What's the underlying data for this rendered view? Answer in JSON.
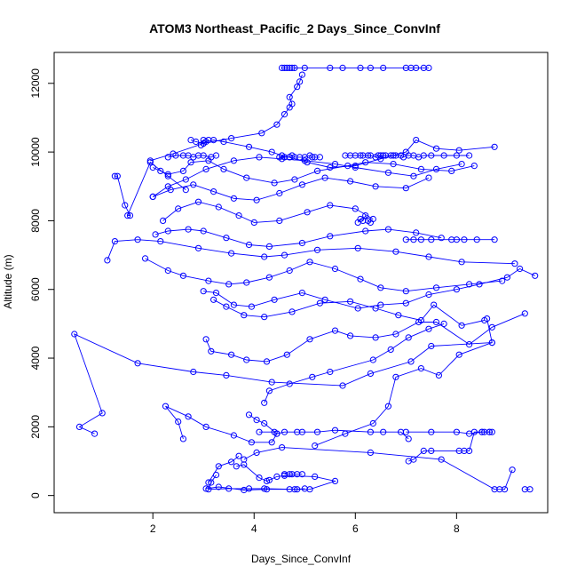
{
  "chart_data": {
    "type": "line",
    "title": "ATOM3 Northeast_Pacific_2 Days_Since_ConvInf",
    "xlabel": "Days_Since_ConvInf",
    "ylabel": "Altitude (m)",
    "xlim": [
      0.05,
      9.8
    ],
    "ylim": [
      -500,
      12900
    ],
    "xticks": [
      2,
      4,
      6,
      8
    ],
    "yticks": [
      0,
      2000,
      4000,
      6000,
      8000,
      10000,
      12000
    ],
    "grid": false,
    "legend": "none",
    "colors": {
      "series": "#0000ff",
      "axis": "#000000",
      "background": "#ffffff"
    },
    "marker": "open-circle",
    "series": [
      {
        "x": [
          9.45,
          9.35
        ],
        "y": [
          180,
          180
        ]
      },
      {
        "x": [
          9.1,
          8.95,
          8.85,
          8.75,
          7.7,
          6.3,
          4.55,
          4.05,
          3.8
        ],
        "y": [
          750,
          180,
          180,
          180,
          1050,
          1250,
          1400,
          1250,
          1050
        ]
      },
      {
        "x": [
          3.25,
          3.15,
          3.1,
          3.5,
          3.9,
          4.2,
          4.8,
          5.1,
          5.6,
          5.2,
          4.6,
          4.45,
          4.3,
          4.25,
          4.1,
          3.8,
          3.65
        ],
        "y": [
          600,
          380,
          180,
          200,
          200,
          200,
          180,
          180,
          420,
          550,
          580,
          550,
          450,
          420,
          520,
          900,
          850
        ]
      },
      {
        "x": [
          3.05,
          3.3,
          3.8,
          4.25,
          4.7,
          4.85,
          5.0
        ],
        "y": [
          200,
          250,
          160,
          180,
          180,
          180,
          200
        ]
      },
      {
        "x": [
          3.1,
          3.3,
          3.55,
          3.7
        ],
        "y": [
          380,
          850,
          980,
          1150
        ]
      },
      {
        "x": [
          4.7,
          4.85,
          4.95,
          4.75,
          4.6
        ],
        "y": [
          620,
          620,
          620,
          620,
          620
        ]
      },
      {
        "x": [
          7.05,
          7.15,
          7.35,
          7.5,
          8.05,
          8.15,
          8.25,
          8.35,
          8.5,
          8.55,
          8.65,
          8.7
        ],
        "y": [
          1000,
          1050,
          1300,
          1300,
          1300,
          1300,
          1300,
          1850,
          1850,
          1850,
          1850,
          1850
        ]
      },
      {
        "x": [
          7.0,
          7.5,
          8.0,
          8.25,
          8.5,
          8.65
        ],
        "y": [
          1850,
          1850,
          1850,
          1800,
          1850,
          1850
        ]
      },
      {
        "x": [
          4.1,
          4.4,
          4.45,
          4.6,
          4.85,
          4.95,
          5.25,
          5.6,
          6.3,
          6.55,
          6.9,
          7.05
        ],
        "y": [
          1850,
          1850,
          1800,
          1850,
          1850,
          1850,
          1850,
          1900,
          1850,
          1850,
          1850,
          1650
        ]
      },
      {
        "x": [
          0.85,
          0.55,
          1.0,
          0.45,
          1.7,
          2.8,
          3.45,
          4.35,
          5.75,
          6.3,
          7.1,
          7.5,
          8.7
        ],
        "y": [
          1800,
          2000,
          2400,
          4700,
          3850,
          3600,
          3500,
          3300,
          3200,
          3550,
          3900,
          4350,
          4450
        ]
      },
      {
        "x": [
          2.6,
          2.5,
          2.25,
          2.7,
          3.05,
          3.6,
          3.95,
          4.35,
          4.45,
          4.2,
          4.05,
          3.9
        ],
        "y": [
          1650,
          2150,
          2600,
          2300,
          2000,
          1750,
          1550,
          1550,
          1800,
          2100,
          2200,
          2350
        ]
      },
      {
        "x": [
          5.2,
          5.8,
          6.35,
          6.65,
          6.8,
          7.3,
          7.65,
          8.05,
          8.7,
          8.6
        ],
        "y": [
          1450,
          1800,
          2100,
          2600,
          3450,
          3700,
          3500,
          4100,
          4450,
          5150
        ]
      },
      {
        "x": [
          4.2,
          4.3,
          4.7,
          5.15,
          5.5,
          6.35,
          6.7,
          7.05,
          7.45,
          7.75
        ],
        "y": [
          2700,
          3050,
          3250,
          3450,
          3600,
          3950,
          4250,
          4600,
          4850,
          5000
        ]
      },
      {
        "x": [
          3.05,
          3.15,
          3.55,
          3.85,
          4.25,
          4.65,
          5.1,
          5.6,
          5.9,
          6.4,
          6.8,
          7.25,
          7.6,
          8.25,
          8.7,
          9.35
        ],
        "y": [
          4550,
          4200,
          4100,
          3950,
          3900,
          4100,
          4550,
          4800,
          4650,
          4600,
          4700,
          5050,
          5050,
          4400,
          4900,
          5300
        ]
      },
      {
        "x": [
          3.2,
          3.45,
          3.8,
          4.2,
          4.75,
          5.3,
          5.9,
          6.4,
          6.85,
          7.3,
          7.55,
          8.1,
          8.55
        ],
        "y": [
          5700,
          5500,
          5250,
          5200,
          5350,
          5600,
          5650,
          5450,
          5250,
          5100,
          5550,
          4950,
          5100
        ]
      },
      {
        "x": [
          3.0,
          3.25,
          3.6,
          3.95,
          4.4,
          4.95,
          5.4,
          6.05,
          6.5,
          7.0,
          7.45,
          8.0,
          8.45,
          9.0,
          9.25,
          9.55
        ],
        "y": [
          5950,
          5900,
          5550,
          5500,
          5700,
          5900,
          5700,
          5450,
          5550,
          5600,
          5850,
          6000,
          6150,
          6350,
          6600,
          6400
        ]
      },
      {
        "x": [
          1.1,
          1.25,
          1.7,
          2.15,
          2.9,
          3.55,
          4.2,
          4.6,
          5.25,
          6.05,
          6.8,
          7.45,
          8.1,
          9.15
        ],
        "y": [
          6850,
          7400,
          7450,
          7400,
          7200,
          7050,
          6950,
          7000,
          7150,
          7200,
          7100,
          6950,
          6800,
          6750
        ]
      },
      {
        "x": [
          1.85,
          2.3,
          2.6,
          3.1,
          3.5,
          3.85,
          4.3,
          4.7,
          5.1,
          5.6,
          6.1,
          6.5,
          7.0,
          7.6,
          8.25,
          8.9
        ],
        "y": [
          6900,
          6550,
          6400,
          6250,
          6150,
          6200,
          6350,
          6550,
          6800,
          6600,
          6300,
          6050,
          5950,
          6050,
          6150,
          6250
        ]
      },
      {
        "x": [
          2.05,
          2.3,
          2.7,
          3.0,
          3.45,
          3.9,
          4.3,
          4.95,
          5.5,
          6.2,
          6.65,
          7.2,
          7.7
        ],
        "y": [
          7600,
          7700,
          7750,
          7700,
          7500,
          7300,
          7250,
          7350,
          7550,
          7700,
          7750,
          7650,
          7500
        ]
      },
      {
        "x": [
          7.0,
          7.15,
          7.3,
          7.5,
          7.9,
          8.0,
          8.15,
          8.4,
          8.75
        ],
        "y": [
          7450,
          7450,
          7450,
          7450,
          7450,
          7450,
          7450,
          7450,
          7450
        ]
      },
      {
        "x": [
          2.2,
          2.5,
          2.9,
          3.3,
          3.7,
          4.0,
          4.5,
          5.05,
          5.5,
          6.0,
          6.35
        ],
        "y": [
          8000,
          8350,
          8550,
          8400,
          8150,
          7950,
          8000,
          8250,
          8450,
          8350,
          8050
        ]
      },
      {
        "x": [
          6.05,
          6.1,
          6.15,
          6.2,
          6.25,
          6.3
        ],
        "y": [
          7950,
          8050,
          8000,
          8150,
          8000,
          7950
        ]
      },
      {
        "x": [
          2.0,
          2.35,
          2.8,
          3.2,
          3.6,
          4.05,
          4.5,
          4.95,
          5.4,
          5.9,
          6.4,
          7.0,
          7.45
        ],
        "y": [
          8700,
          8900,
          9050,
          8850,
          8650,
          8600,
          8800,
          9050,
          9250,
          9150,
          9000,
          8950,
          9250
        ]
      },
      {
        "x": [
          1.25,
          1.3,
          1.45,
          1.55,
          1.5,
          1.95,
          2.3,
          2.65
        ],
        "y": [
          9300,
          9300,
          8450,
          8150,
          8150,
          9700,
          9300,
          8900
        ]
      },
      {
        "x": [
          2.0,
          2.15,
          2.3,
          2.6,
          2.75,
          3.1,
          3.4,
          3.85,
          4.4,
          4.8,
          5.25,
          5.85,
          6.2,
          6.75,
          7.3,
          7.9,
          8.35
        ],
        "y": [
          9550,
          9450,
          9350,
          9450,
          9700,
          9750,
          9500,
          9250,
          9100,
          9200,
          9450,
          9600,
          9700,
          9650,
          9500,
          9450,
          9600
        ]
      },
      {
        "x": [
          2.0,
          2.3,
          2.65,
          3.05,
          3.6,
          4.1,
          4.55,
          5.0,
          5.6,
          6.0,
          6.65,
          7.15,
          7.6,
          8.1
        ],
        "y": [
          8700,
          9000,
          9200,
          9500,
          9750,
          9850,
          9800,
          9750,
          9650,
          9550,
          9400,
          9300,
          9500,
          9650
        ]
      },
      {
        "x": [
          2.3,
          2.45,
          2.6,
          2.7,
          2.8,
          2.9,
          3.0,
          3.15,
          3.25
        ],
        "y": [
          9850,
          9900,
          9900,
          9900,
          9850,
          9900,
          9900,
          9850,
          9900
        ]
      },
      {
        "x": [
          4.5,
          4.6,
          4.7,
          4.75,
          4.8,
          4.9,
          5.0,
          5.1,
          5.15,
          5.2,
          5.3
        ],
        "y": [
          9850,
          9850,
          9850,
          9900,
          9850,
          9850,
          9850,
          9900,
          9850,
          9850,
          9850
        ]
      },
      {
        "x": [
          5.8,
          5.9,
          6.0,
          6.1,
          6.15,
          6.25,
          6.3,
          6.4,
          6.45,
          6.5,
          6.55,
          6.6,
          6.7,
          6.75,
          6.8,
          6.9,
          6.95,
          7.05,
          7.15,
          7.25,
          7.35,
          7.5,
          7.75,
          8.0,
          8.25
        ],
        "y": [
          9900,
          9900,
          9900,
          9900,
          9900,
          9900,
          9900,
          9850,
          9900,
          9900,
          9900,
          9900,
          9900,
          9900,
          9900,
          9900,
          9850,
          9900,
          9900,
          9850,
          9900,
          9900,
          9900,
          9900,
          9900
        ]
      },
      {
        "x": [
          2.95,
          3.0,
          3.05,
          3.2,
          3.4,
          3.9,
          4.35,
          4.55,
          4.7,
          5.05,
          5.5,
          6.0,
          6.5,
          7.0,
          7.2,
          7.6,
          8.05,
          8.75
        ],
        "y": [
          10200,
          10350,
          10300,
          10350,
          10300,
          10150,
          10000,
          9900,
          9850,
          9700,
          9550,
          9600,
          9800,
          10000,
          10350,
          10100,
          10050,
          10150
        ]
      },
      {
        "x": [
          2.75,
          2.85,
          3.0,
          3.1
        ],
        "y": [
          10350,
          10300,
          10250,
          10350
        ]
      },
      {
        "x": [
          1.95,
          2.4,
          3.0,
          3.55,
          4.15,
          4.45,
          4.6,
          4.7,
          4.75,
          4.7,
          4.85,
          4.9,
          4.95
        ],
        "y": [
          9750,
          9950,
          10250,
          10400,
          10550,
          10800,
          11100,
          11300,
          11400,
          11600,
          11900,
          12050,
          12250
        ]
      },
      {
        "x": [
          4.55,
          4.6,
          4.65,
          4.7,
          4.75,
          4.8,
          5.0,
          5.5,
          5.75,
          6.1,
          6.3,
          6.55,
          7.0,
          7.1,
          7.2,
          7.35,
          7.45
        ],
        "y": [
          12450,
          12450,
          12450,
          12450,
          12450,
          12450,
          12450,
          12450,
          12450,
          12450,
          12450,
          12450,
          12450,
          12450,
          12450,
          12450,
          12450
        ]
      }
    ]
  }
}
